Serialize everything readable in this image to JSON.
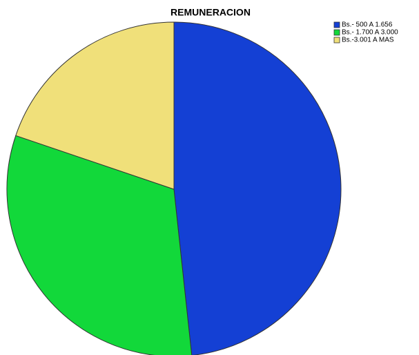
{
  "chart_data": {
    "type": "pie",
    "title": "REMUNERACION",
    "categories": [
      "Bs.- 500 A 1.656",
      "Bs.- 1.700 A 3.000",
      "Bs.-3.001 A MAS"
    ],
    "values": [
      48.3,
      31.9,
      19.8
    ],
    "colors": [
      "#1440d4",
      "#12d83a",
      "#f0e07a"
    ],
    "legend": "top-right"
  }
}
